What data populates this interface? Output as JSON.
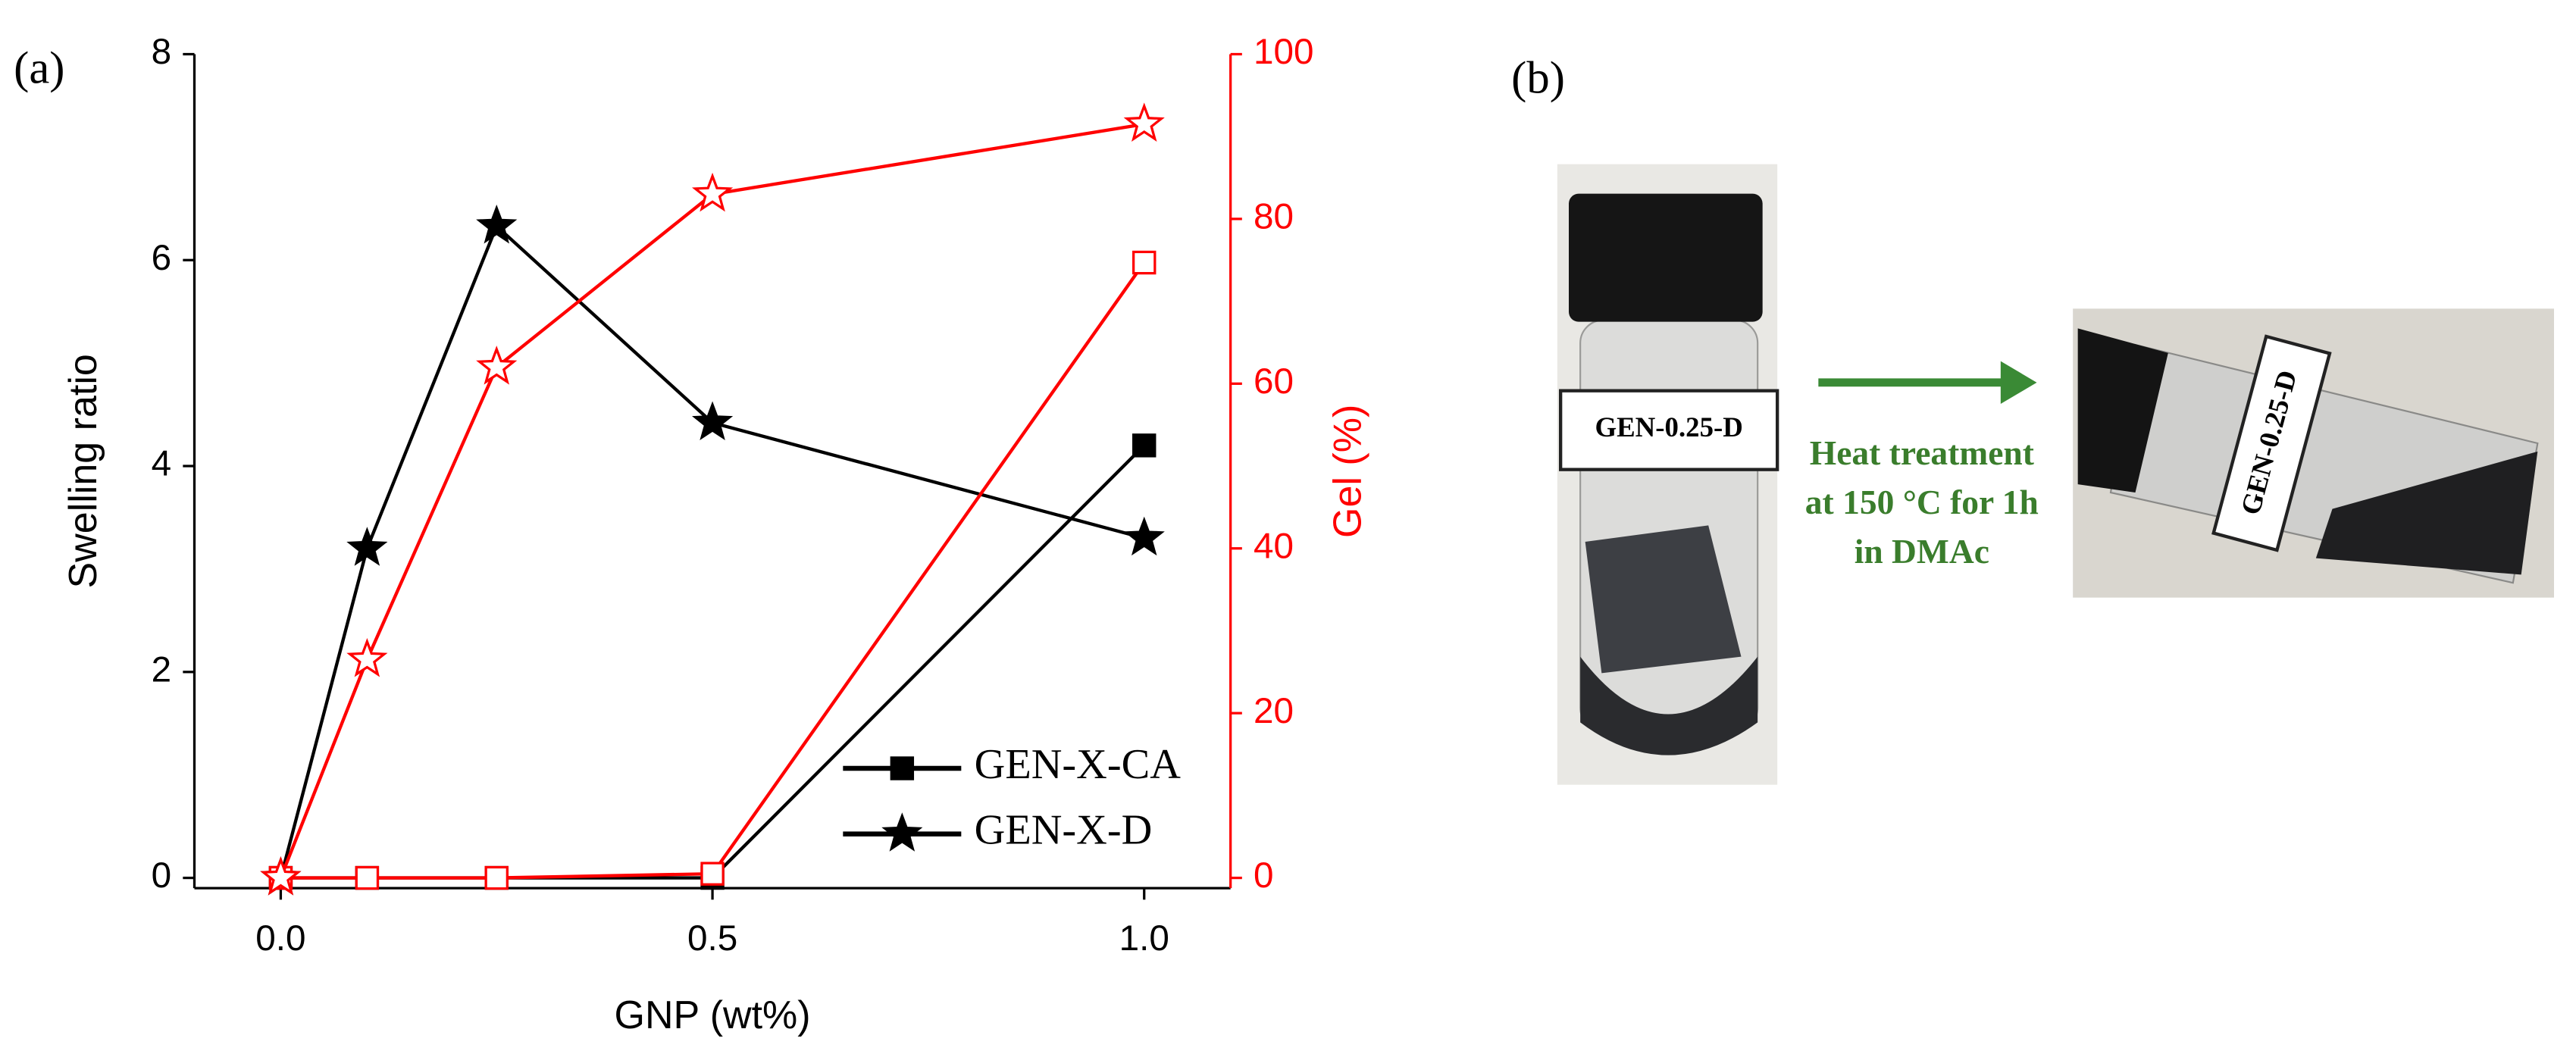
{
  "chart_data": {
    "type": "line",
    "x": [
      0,
      0.1,
      0.25,
      0.5,
      1.0
    ],
    "x_label": "GNP (wt%)",
    "y_label": "Swelling ratio",
    "y2_label": "Gel (%)",
    "xlim": [
      -0.1,
      1.1
    ],
    "xticks": [
      {
        "value": 0,
        "label": "0.0"
      },
      {
        "value": 0.5,
        "label": "0.5"
      },
      {
        "value": 1.0,
        "label": "1.0"
      }
    ],
    "ylim": [
      -0.1,
      8
    ],
    "yticks": [
      0,
      2,
      4,
      6,
      8
    ],
    "y2lim": [
      -1.25,
      100
    ],
    "y2ticks": [
      0,
      20,
      40,
      60,
      80,
      100
    ],
    "y2_color": "#ff0000",
    "legend": "lower right",
    "series": [
      {
        "name": "GEN-X-CA",
        "color": "#000000",
        "marker": "square",
        "filled": true,
        "values": [
          0,
          0,
          0,
          0,
          4.2
        ]
      },
      {
        "name": "GEN-X-D",
        "color": "#000000",
        "marker": "star",
        "filled": true,
        "values": [
          0,
          3.2,
          6.33,
          4.42,
          3.3
        ]
      },
      {
        "color": "#ff0000",
        "marker": "square",
        "filled": false,
        "axis": "y2",
        "values": [
          0,
          0,
          0,
          0.5,
          74.7
        ]
      },
      {
        "color": "#ff0000",
        "marker": "star",
        "filled": false,
        "axis": "y2",
        "values": [
          0,
          26.5,
          62,
          83,
          91.5
        ]
      }
    ]
  },
  "panel_labels": [
    "(a)",
    "(b)"
  ],
  "photo": {
    "vial_labels": [
      "GEN-0.25-D",
      "GEN-0.25-D"
    ],
    "caption": [
      "Heat treatment",
      "at 150 °C for 1h",
      "in DMAc"
    ]
  }
}
